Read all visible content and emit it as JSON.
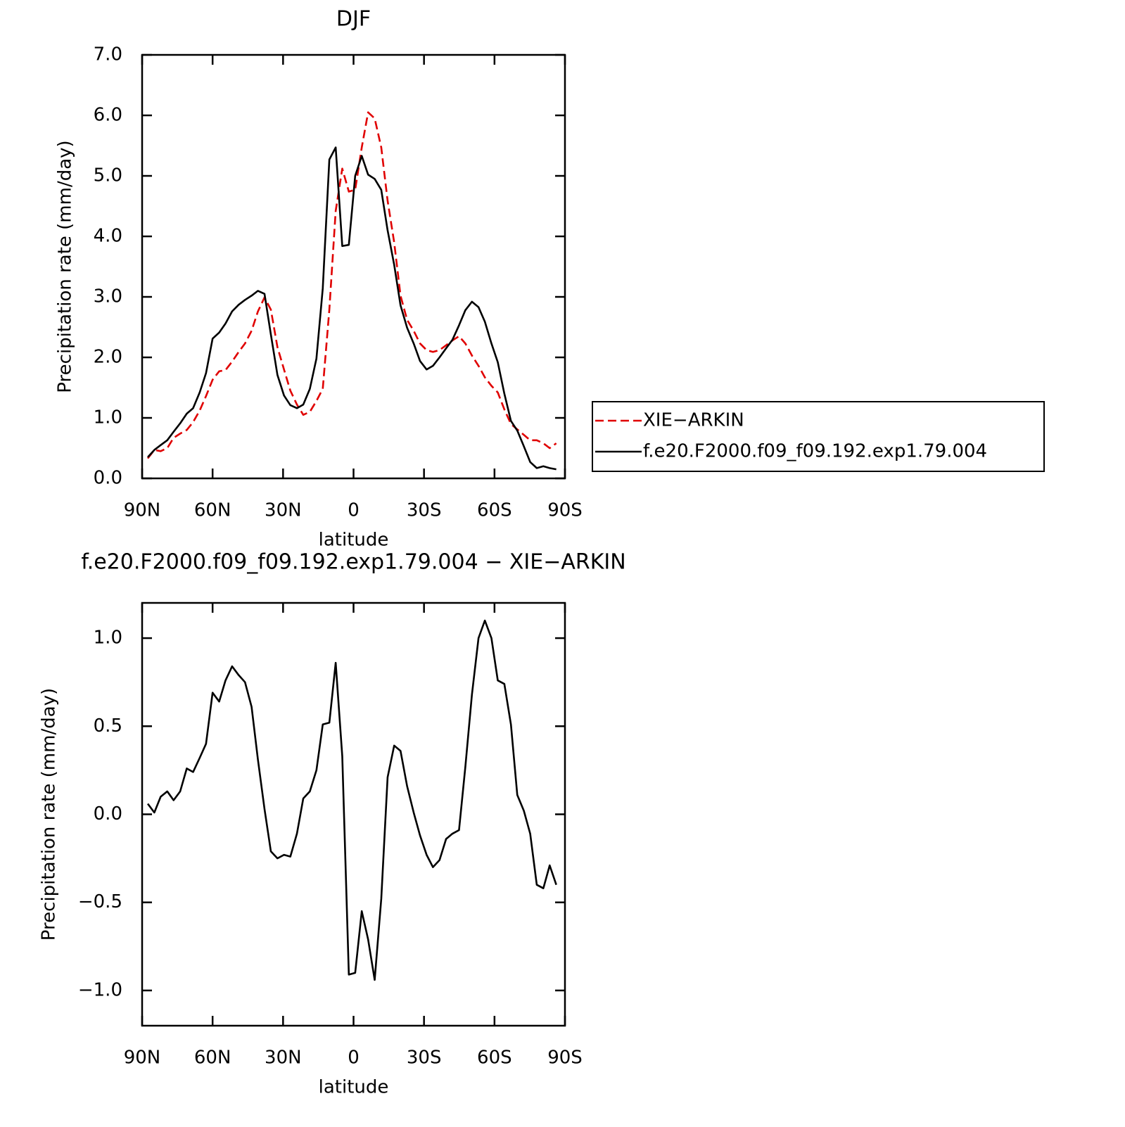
{
  "chart_data": [
    {
      "type": "line",
      "title": "DJF",
      "xlabel": "latitude",
      "ylabel": "Precipitation rate (mm/day)",
      "x": [
        87.6,
        84.8,
        82.1,
        79.3,
        76.6,
        73.8,
        71.0,
        68.3,
        65.5,
        62.8,
        60.0,
        57.2,
        54.5,
        51.7,
        48.9,
        46.2,
        43.4,
        40.7,
        37.9,
        35.2,
        32.4,
        29.6,
        26.9,
        24.1,
        21.4,
        18.6,
        15.8,
        13.1,
        10.3,
        7.6,
        4.8,
        2.0,
        -0.7,
        -3.5,
        -6.2,
        -9.0,
        -11.8,
        -14.5,
        -17.3,
        -20.0,
        -22.8,
        -25.6,
        -28.3,
        -31.1,
        -33.8,
        -36.6,
        -39.4,
        -42.1,
        -44.9,
        -47.6,
        -50.4,
        -53.2,
        -55.9,
        -58.7,
        -61.4,
        -64.2,
        -67.0,
        -69.7,
        -72.5,
        -75.2,
        -78.0,
        -80.8,
        -83.5,
        -86.3
      ],
      "series": [
        {
          "name": "XIE−ARKIN",
          "color": "#e00000",
          "dashed": true,
          "values": [
            0.33,
            0.47,
            0.45,
            0.5,
            0.67,
            0.74,
            0.8,
            0.93,
            1.12,
            1.36,
            1.63,
            1.77,
            1.79,
            1.93,
            2.09,
            2.23,
            2.44,
            2.76,
            2.99,
            2.79,
            2.17,
            1.8,
            1.45,
            1.22,
            1.05,
            1.1,
            1.28,
            1.48,
            2.79,
            4.42,
            5.12,
            4.74,
            4.77,
            5.47,
            6.05,
            5.95,
            5.47,
            4.59,
            3.9,
            3.02,
            2.62,
            2.44,
            2.23,
            2.12,
            2.09,
            2.12,
            2.2,
            2.28,
            2.35,
            2.23,
            2.03,
            1.86,
            1.67,
            1.53,
            1.42,
            1.14,
            0.9,
            0.81,
            0.72,
            0.63,
            0.63,
            0.58,
            0.5,
            0.58
          ]
        },
        {
          "name": "f.e20.F2000.f09_f09.192.exp1.79.004",
          "color": "#000000",
          "dashed": false,
          "values": [
            0.35,
            0.47,
            0.55,
            0.63,
            0.77,
            0.91,
            1.07,
            1.16,
            1.42,
            1.74,
            2.31,
            2.41,
            2.56,
            2.76,
            2.87,
            2.95,
            3.02,
            3.1,
            3.05,
            2.38,
            1.71,
            1.37,
            1.21,
            1.16,
            1.22,
            1.48,
            1.98,
            3.14,
            5.27,
            5.47,
            3.84,
            3.86,
            5.0,
            5.33,
            5.02,
            4.95,
            4.77,
            4.1,
            3.53,
            2.86,
            2.49,
            2.23,
            1.94,
            1.8,
            1.86,
            2.0,
            2.15,
            2.29,
            2.53,
            2.78,
            2.92,
            2.83,
            2.59,
            2.23,
            1.92,
            1.4,
            0.95,
            0.79,
            0.53,
            0.27,
            0.17,
            0.2,
            0.17,
            0.15
          ]
        }
      ],
      "xlim": [
        90,
        -90
      ],
      "xticks": [
        {
          "value": 90,
          "label": "90N"
        },
        {
          "value": 60,
          "label": "60N"
        },
        {
          "value": 30,
          "label": "30N"
        },
        0,
        {
          "value": -30,
          "label": "30S"
        },
        {
          "value": -60,
          "label": "60S"
        },
        {
          "value": -90,
          "label": "90S"
        }
      ],
      "ylim": [
        0,
        7
      ],
      "yticks": [
        {
          "value": 0,
          "label": "0.0"
        },
        {
          "value": 1,
          "label": "1.0"
        },
        {
          "value": 2,
          "label": "2.0"
        },
        {
          "value": 3,
          "label": "3.0"
        },
        {
          "value": 4,
          "label": "4.0"
        },
        {
          "value": 5,
          "label": "5.0"
        },
        {
          "value": 6,
          "label": "6.0"
        },
        {
          "value": 7,
          "label": "7.0"
        }
      ],
      "legend": "right"
    },
    {
      "type": "line",
      "title": "f.e20.F2000.f09_f09.192.exp1.79.004 − XIE−ARKIN",
      "xlabel": "latitude",
      "ylabel": "Precipitation rate (mm/day)",
      "x": [
        87.6,
        84.8,
        82.1,
        79.3,
        76.6,
        73.8,
        71.0,
        68.3,
        65.5,
        62.8,
        60.0,
        57.2,
        54.5,
        51.7,
        48.9,
        46.2,
        43.4,
        40.7,
        37.9,
        35.2,
        32.4,
        29.6,
        26.9,
        24.1,
        21.4,
        18.6,
        15.8,
        13.1,
        10.3,
        7.6,
        4.8,
        2.0,
        -0.7,
        -3.5,
        -6.2,
        -9.0,
        -11.8,
        -14.5,
        -17.3,
        -20.0,
        -22.8,
        -25.6,
        -28.3,
        -31.1,
        -33.8,
        -36.6,
        -39.4,
        -42.1,
        -44.9,
        -47.6,
        -50.4,
        -53.2,
        -55.9,
        -58.7,
        -61.4,
        -64.2,
        -67.0,
        -69.7,
        -72.5,
        -75.2,
        -78.0,
        -80.8,
        -83.5,
        -86.3
      ],
      "series": [
        {
          "color": "#000000",
          "dashed": false,
          "values": [
            0.06,
            0.01,
            0.1,
            0.13,
            0.08,
            0.13,
            0.26,
            0.24,
            0.32,
            0.4,
            0.69,
            0.64,
            0.76,
            0.84,
            0.79,
            0.75,
            0.61,
            0.31,
            0.03,
            -0.21,
            -0.25,
            -0.23,
            -0.24,
            -0.11,
            0.09,
            0.13,
            0.25,
            0.51,
            0.52,
            0.86,
            0.33,
            -0.91,
            -0.9,
            -0.55,
            -0.71,
            -0.94,
            -0.48,
            0.21,
            0.39,
            0.36,
            0.16,
            0.01,
            -0.12,
            -0.23,
            -0.3,
            -0.26,
            -0.14,
            -0.11,
            -0.09,
            0.27,
            0.68,
            1.0,
            1.1,
            1.0,
            0.76,
            0.74,
            0.51,
            0.11,
            0.02,
            -0.11,
            -0.4,
            -0.42,
            -0.29,
            -0.4
          ]
        }
      ],
      "xlim": [
        90,
        -90
      ],
      "xticks": [
        {
          "value": 90,
          "label": "90N"
        },
        {
          "value": 60,
          "label": "60N"
        },
        {
          "value": 30,
          "label": "30N"
        },
        0,
        {
          "value": -30,
          "label": "30S"
        },
        {
          "value": -60,
          "label": "60S"
        },
        {
          "value": -90,
          "label": "90S"
        }
      ],
      "ylim": [
        -1.2,
        1.2
      ],
      "yticks": [
        {
          "value": -1,
          "label": "−1.0"
        },
        {
          "value": -0.5,
          "label": "−0.5"
        },
        {
          "value": 0,
          "label": "0.0"
        },
        {
          "value": 0.5,
          "label": "0.5"
        },
        {
          "value": 1,
          "label": "1.0"
        }
      ]
    }
  ]
}
